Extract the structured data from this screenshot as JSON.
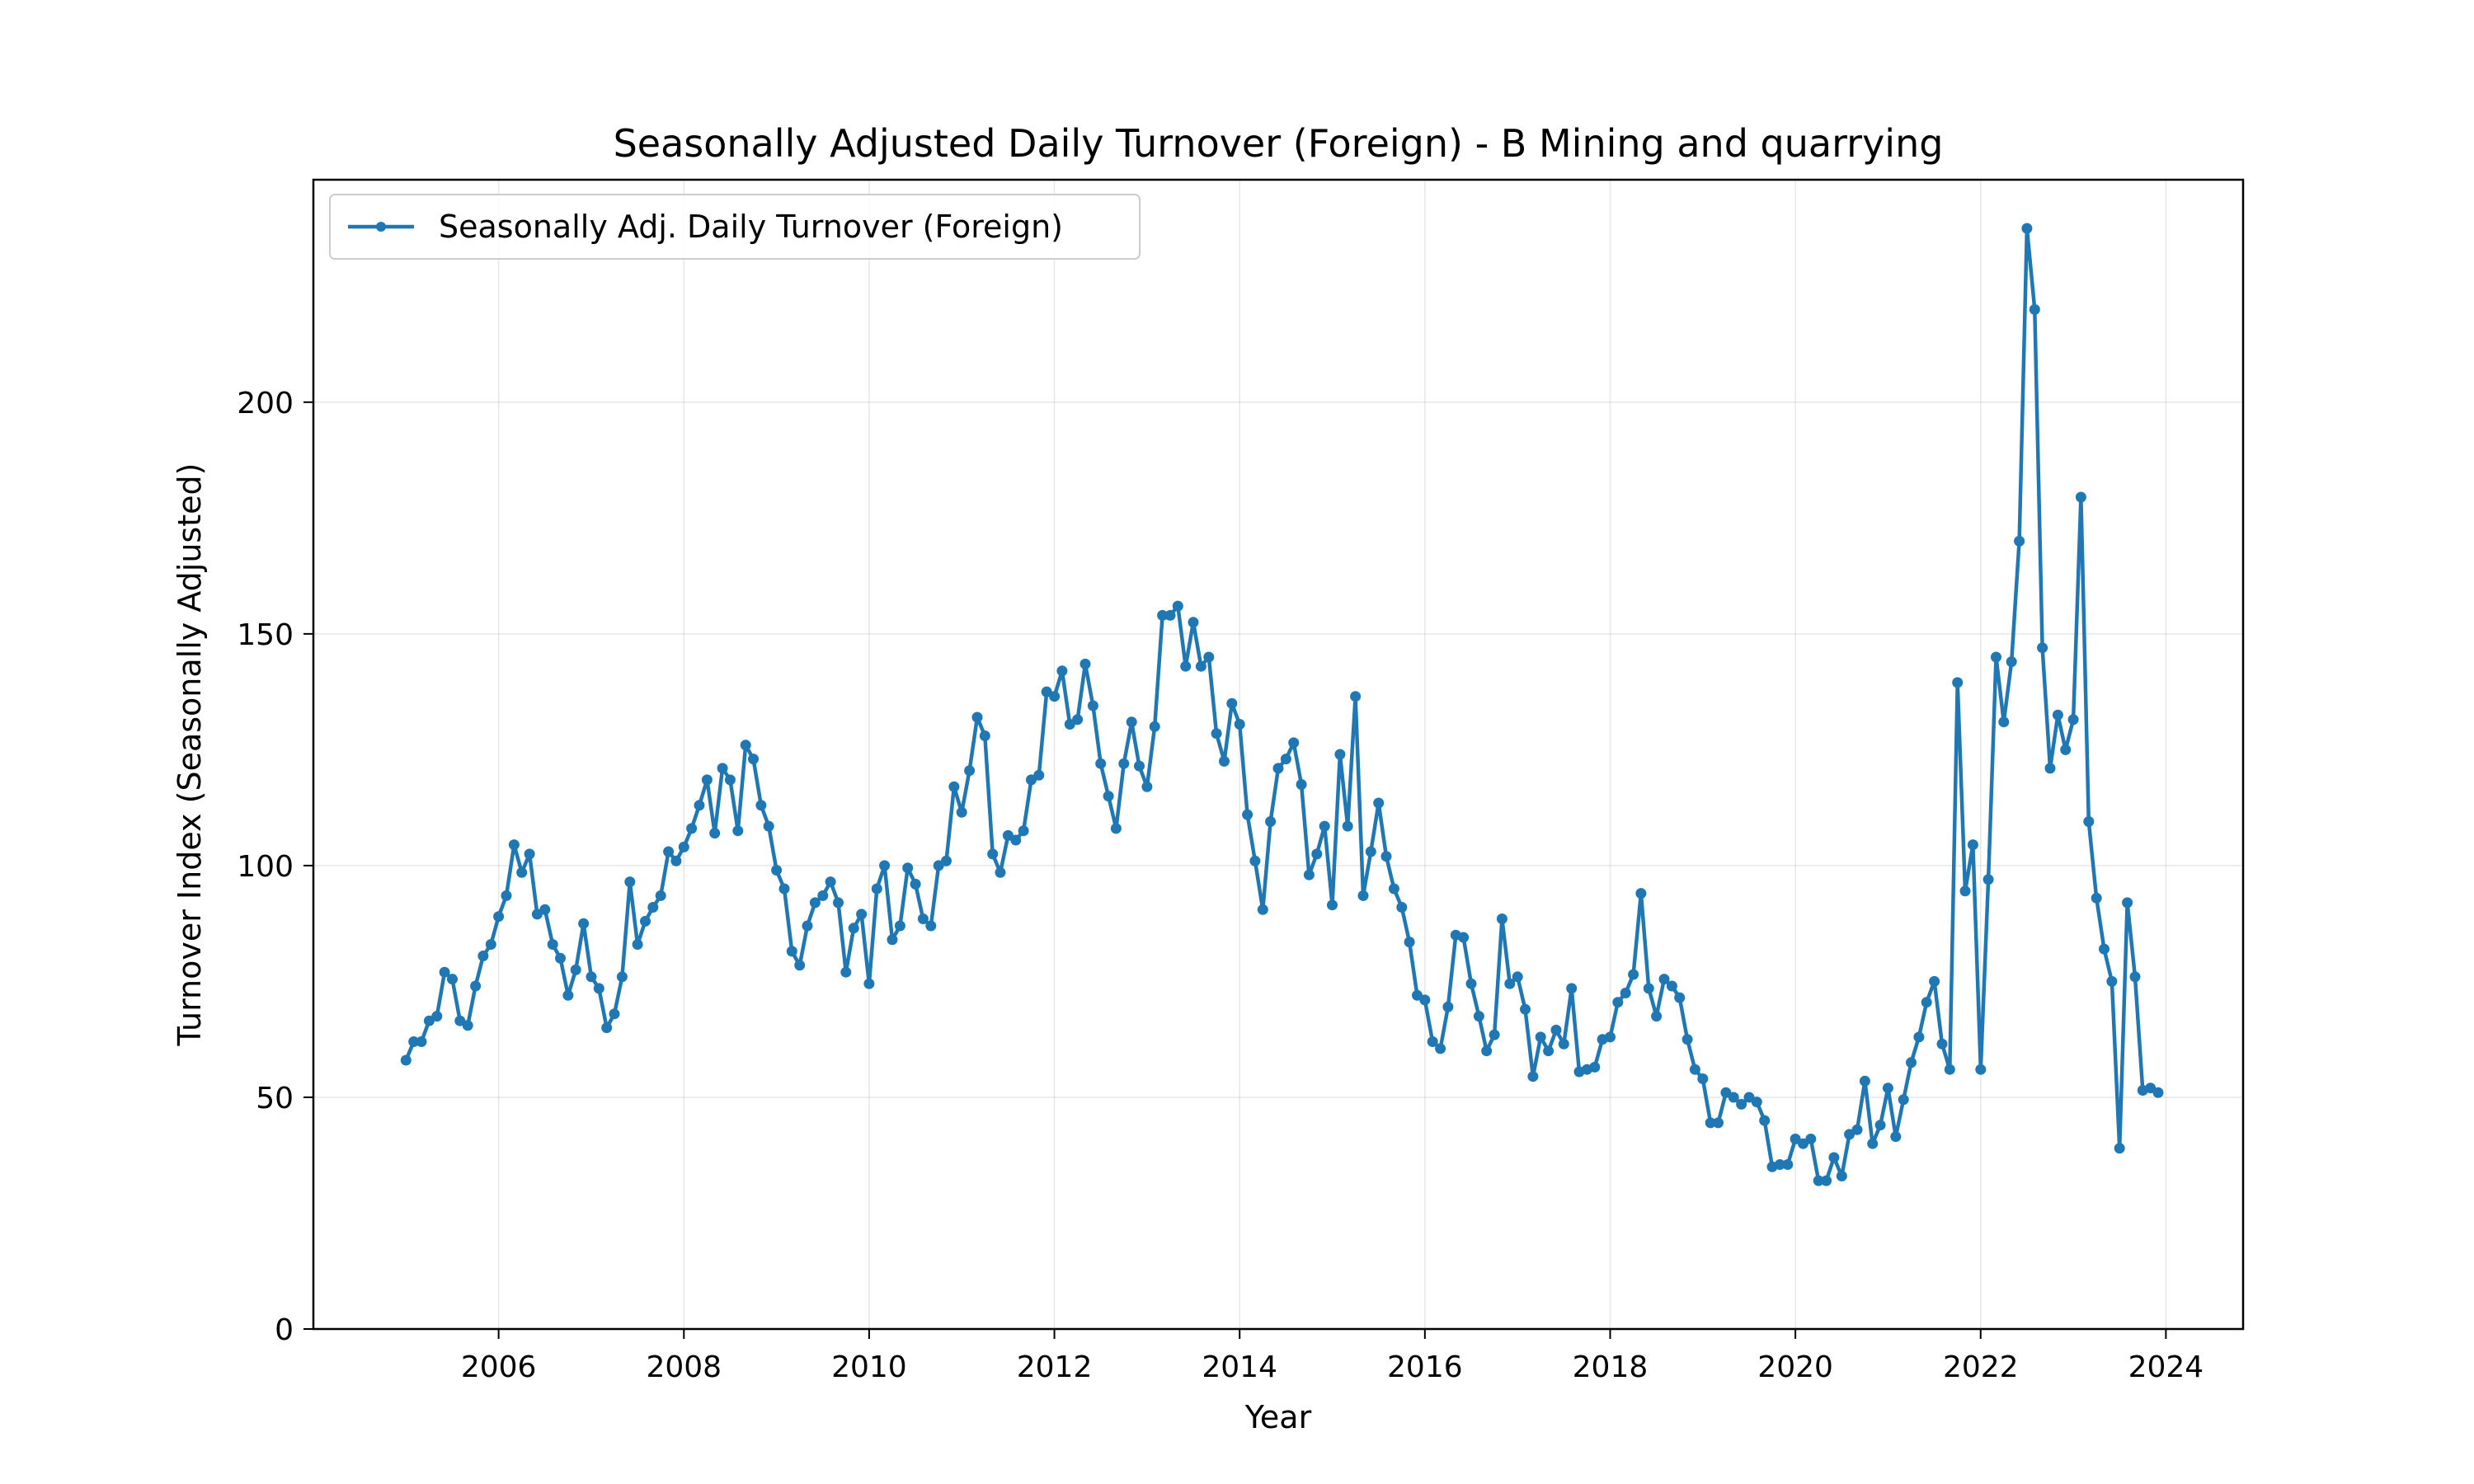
{
  "chart_data": {
    "type": "line",
    "title": "Seasonally Adjusted Daily Turnover (Foreign) - B Mining and quarrying",
    "xlabel": "Year",
    "ylabel": "Turnover Index (Seasonally Adjusted)",
    "xlim": [
      "2004-01",
      "2024-11"
    ],
    "ylim": [
      0,
      248
    ],
    "x_ticks": [
      "2006",
      "2008",
      "2010",
      "2012",
      "2014",
      "2016",
      "2018",
      "2020",
      "2022",
      "2024"
    ],
    "y_ticks": [
      0,
      50,
      100,
      150,
      200
    ],
    "grid": true,
    "legend_position": "upper-left",
    "color": "#1f77b4",
    "series": [
      {
        "name": "Seasonally Adj. Daily Turnover (Foreign)",
        "start": "2005-01",
        "frequency": "monthly",
        "values": [
          58,
          62,
          62,
          66.5,
          67.5,
          77,
          75.5,
          66.5,
          65.5,
          74,
          80.5,
          83,
          89,
          93.5,
          104.5,
          98.5,
          102.5,
          89.5,
          90.5,
          83,
          80,
          72,
          77.5,
          87.5,
          76,
          73.5,
          65,
          68,
          76,
          96.5,
          83,
          88,
          91,
          93.5,
          103,
          101,
          104,
          108,
          113,
          118.5,
          107,
          121,
          118.5,
          107.5,
          126,
          123,
          113,
          108.5,
          99,
          95,
          81.5,
          78.5,
          87,
          92,
          93.5,
          96.5,
          92,
          77,
          86.5,
          89.5,
          74.5,
          95,
          100,
          84,
          87,
          99.5,
          96,
          88.5,
          87,
          100,
          101,
          117,
          111.5,
          120.5,
          132,
          128,
          102.5,
          98.5,
          106.5,
          105.5,
          107.5,
          118.5,
          119.5,
          137.5,
          136.5,
          142,
          130.5,
          131.5,
          143.5,
          134.5,
          122,
          115,
          108,
          122,
          131,
          121.5,
          117,
          130,
          154,
          154,
          156,
          143,
          152.5,
          143,
          145,
          128.5,
          122.5,
          135,
          130.5,
          111,
          101,
          90.5,
          109.5,
          121,
          123,
          126.5,
          117.5,
          98,
          102.5,
          108.5,
          91.5,
          124,
          108.5,
          136.5,
          93.5,
          103,
          113.5,
          102,
          95,
          91,
          83.5,
          72,
          71,
          62,
          60.5,
          69.5,
          85,
          84.5,
          74.5,
          67.5,
          60,
          63.5,
          88.5,
          74.5,
          76,
          69,
          54.5,
          63,
          60,
          64.5,
          61.5,
          73.5,
          55.5,
          56,
          56.5,
          62.5,
          63,
          70.5,
          72.5,
          76.5,
          94,
          73.5,
          67.5,
          75.5,
          74,
          71.5,
          62.5,
          56,
          54,
          44.5,
          44.5,
          51,
          50,
          48.5,
          50,
          49,
          45,
          35,
          35.5,
          35.5,
          41,
          40,
          41,
          32,
          32,
          37,
          33,
          42,
          43,
          53.5,
          40,
          44,
          52,
          41.5,
          49.5,
          57.5,
          63,
          70.5,
          75,
          61.5,
          56,
          139.5,
          94.5,
          104.5,
          56,
          97,
          145,
          131,
          144,
          170,
          237.5,
          220,
          147,
          121,
          132.5,
          125,
          131.5,
          179.5,
          109.5,
          93,
          82,
          75,
          39,
          92,
          76,
          51.5,
          52,
          51
        ]
      }
    ]
  }
}
